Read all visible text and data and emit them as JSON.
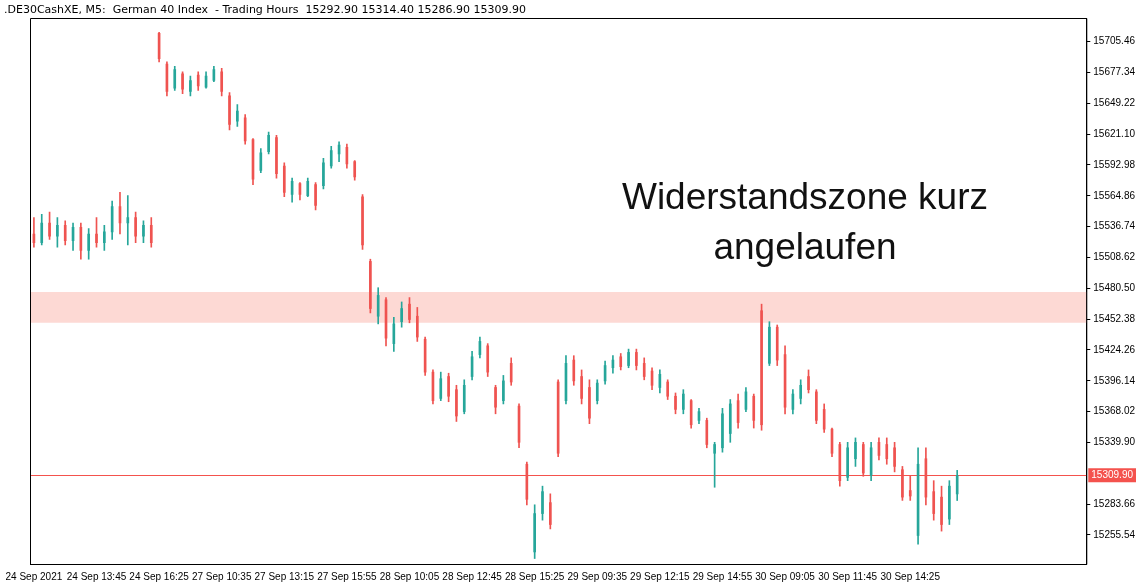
{
  "chart_data": {
    "type": "candlestick",
    "title": ".DE30CashXE, M5:  German 40 Index  - Trading Hours  15292.90 15314.40 15286.90 15309.90",
    "annotations": [
      "Widerstandszone kurz angelaufen"
    ],
    "categories": [
      "24 Sep 2021",
      null,
      null,
      null,
      null,
      null,
      null,
      null,
      "24 Sep 13:45",
      null,
      null,
      null,
      null,
      null,
      null,
      null,
      "24 Sep 16:25",
      null,
      null,
      null,
      null,
      null,
      null,
      null,
      "27 Sep 10:35",
      null,
      null,
      null,
      null,
      null,
      null,
      null,
      "27 Sep 13:15",
      null,
      null,
      null,
      null,
      null,
      null,
      null,
      "27 Sep 15:55",
      null,
      null,
      null,
      null,
      null,
      null,
      null,
      "28 Sep 10:05",
      null,
      null,
      null,
      null,
      null,
      null,
      null,
      "28 Sep 12:45",
      null,
      null,
      null,
      null,
      null,
      null,
      null,
      "28 Sep 15:25",
      null,
      null,
      null,
      null,
      null,
      null,
      null,
      "29 Sep 09:35",
      null,
      null,
      null,
      null,
      null,
      null,
      null,
      "29 Sep 12:15",
      null,
      null,
      null,
      null,
      null,
      null,
      null,
      "29 Sep 14:55",
      null,
      null,
      null,
      null,
      null,
      null,
      null,
      "30 Sep 09:05",
      null,
      null,
      null,
      null,
      null,
      null,
      null,
      "30 Sep 11:45",
      null,
      null,
      null,
      null,
      null,
      null,
      null,
      "30 Sep 14:25",
      null,
      null,
      null,
      null,
      null,
      null,
      null,
      null,
      null,
      null,
      null,
      null,
      null,
      null,
      null,
      null,
      null,
      null,
      null,
      null,
      null,
      null
    ],
    "ohlc": [
      [
        15530,
        15545,
        15518,
        15522
      ],
      [
        15522,
        15548,
        15520,
        15540
      ],
      [
        15540,
        15550,
        15525,
        15528
      ],
      [
        15528,
        15545,
        15518,
        15538
      ],
      [
        15538,
        15542,
        15520,
        15524
      ],
      [
        15524,
        15540,
        15515,
        15536
      ],
      [
        15536,
        15540,
        15507,
        15515
      ],
      [
        15515,
        15535,
        15507,
        15530
      ],
      [
        15530,
        15545,
        15518,
        15522
      ],
      [
        15522,
        15538,
        15515,
        15532
      ],
      [
        15532,
        15560,
        15525,
        15555
      ],
      [
        15555,
        15568,
        15530,
        15540
      ],
      [
        15540,
        15565,
        15520,
        15545
      ],
      [
        15545,
        15550,
        15522,
        15528
      ],
      [
        15528,
        15542,
        15522,
        15538
      ],
      [
        15538,
        15545,
        15518,
        15522
      ],
      [
        15713,
        15714,
        15687,
        15690
      ],
      [
        15685,
        15687,
        15656,
        15660
      ],
      [
        15663,
        15683,
        15661,
        15680
      ],
      [
        15676,
        15678,
        15658,
        15662
      ],
      [
        15660,
        15674,
        15656,
        15670
      ],
      [
        15675,
        15678,
        15661,
        15665
      ],
      [
        15664,
        15678,
        15663,
        15674
      ],
      [
        15670,
        15683,
        15669,
        15680
      ],
      [
        15678,
        15681,
        15656,
        15660
      ],
      [
        15656,
        15659,
        15625,
        15630
      ],
      [
        15633,
        15648,
        15628,
        15642
      ],
      [
        15636,
        15639,
        15612,
        15615
      ],
      [
        15616,
        15617,
        15575,
        15580
      ],
      [
        15588,
        15608,
        15586,
        15604
      ],
      [
        15605,
        15623,
        15603,
        15620
      ],
      [
        15618,
        15620,
        15581,
        15585
      ],
      [
        15592,
        15595,
        15564,
        15568
      ],
      [
        15566,
        15581,
        15559,
        15578
      ],
      [
        15576,
        15577,
        15561,
        15566
      ],
      [
        15565,
        15581,
        15564,
        15578
      ],
      [
        15575,
        15577,
        15552,
        15556
      ],
      [
        15574,
        15599,
        15571,
        15595
      ],
      [
        15592,
        15610,
        15590,
        15606
      ],
      [
        15603,
        15614,
        15596,
        15611
      ],
      [
        15609,
        15612,
        15590,
        15594
      ],
      [
        15596,
        15597,
        15579,
        15582
      ],
      [
        15564,
        15566,
        15516,
        15520
      ],
      [
        15505,
        15507,
        15458,
        15462
      ],
      [
        15455,
        15481,
        15448,
        15474
      ],
      [
        15470,
        15472,
        15428,
        15435
      ],
      [
        15430,
        15454,
        15423,
        15448
      ],
      [
        15450,
        15468,
        15445,
        15462
      ],
      [
        15466,
        15472,
        15449,
        15452
      ],
      [
        15455,
        15463,
        15432,
        15436
      ],
      [
        15434,
        15436,
        15401,
        15404
      ],
      [
        15404,
        15406,
        15375,
        15378
      ],
      [
        15380,
        15404,
        15378,
        15398
      ],
      [
        15400,
        15403,
        15377,
        15382
      ],
      [
        15388,
        15392,
        15359,
        15364
      ],
      [
        15368,
        15397,
        15366,
        15392
      ],
      [
        15400,
        15423,
        15397,
        15418
      ],
      [
        15420,
        15436,
        15417,
        15432
      ],
      [
        15428,
        15430,
        15400,
        15404
      ],
      [
        15390,
        15392,
        15366,
        15372
      ],
      [
        15378,
        15401,
        15375,
        15396
      ],
      [
        15412,
        15417,
        15392,
        15395
      ],
      [
        15373,
        15375,
        15335,
        15340
      ],
      [
        15320,
        15322,
        15283,
        15288
      ],
      [
        15240,
        15283,
        15234,
        15275
      ],
      [
        15275,
        15300,
        15269,
        15295
      ],
      [
        15285,
        15293,
        15261,
        15265
      ],
      [
        15395,
        15397,
        15327,
        15330
      ],
      [
        15378,
        15419,
        15375,
        15412
      ],
      [
        15415,
        15419,
        15392,
        15396
      ],
      [
        15400,
        15406,
        15375,
        15380
      ],
      [
        15390,
        15397,
        15357,
        15362
      ],
      [
        15378,
        15397,
        15375,
        15394
      ],
      [
        15396,
        15414,
        15393,
        15410
      ],
      [
        15408,
        15419,
        15403,
        15415
      ],
      [
        15418,
        15421,
        15406,
        15409
      ],
      [
        15410,
        15425,
        15408,
        15422
      ],
      [
        15422,
        15425,
        15406,
        15410
      ],
      [
        15412,
        15417,
        15397,
        15400
      ],
      [
        15405,
        15408,
        15388,
        15392
      ],
      [
        15390,
        15406,
        15385,
        15402
      ],
      [
        15395,
        15397,
        15379,
        15382
      ],
      [
        15382,
        15385,
        15366,
        15370
      ],
      [
        15370,
        15388,
        15366,
        15384
      ],
      [
        15378,
        15379,
        15353,
        15356
      ],
      [
        15360,
        15371,
        15357,
        15368
      ],
      [
        15360,
        15362,
        15335,
        15338
      ],
      [
        15330,
        15340,
        15299,
        15338
      ],
      [
        15335,
        15371,
        15331,
        15366
      ],
      [
        15348,
        15379,
        15340,
        15375
      ],
      [
        15378,
        15384,
        15353,
        15358
      ],
      [
        15370,
        15390,
        15368,
        15386
      ],
      [
        15382,
        15384,
        15353,
        15360
      ],
      [
        15460,
        15466,
        15351,
        15356
      ],
      [
        15412,
        15450,
        15410,
        15445
      ],
      [
        15445,
        15447,
        15410,
        15415
      ],
      [
        15420,
        15428,
        15366,
        15372
      ],
      [
        15370,
        15388,
        15366,
        15384
      ],
      [
        15380,
        15397,
        15375,
        15392
      ],
      [
        15400,
        15406,
        15385,
        15388
      ],
      [
        15386,
        15388,
        15357,
        15360
      ],
      [
        15370,
        15375,
        15349,
        15352
      ],
      [
        15352,
        15353,
        15327,
        15330
      ],
      [
        15338,
        15340,
        15300,
        15305
      ],
      [
        15308,
        15340,
        15305,
        15335
      ],
      [
        15325,
        15344,
        15318,
        15340
      ],
      [
        15338,
        15340,
        15309,
        15312
      ],
      [
        15310,
        15340,
        15305,
        15335
      ],
      [
        15340,
        15344,
        15324,
        15328
      ],
      [
        15338,
        15344,
        15320,
        15325
      ],
      [
        15335,
        15340,
        15313,
        15318
      ],
      [
        15315,
        15318,
        15287,
        15290
      ],
      [
        15296,
        15309,
        15287,
        15291
      ],
      [
        15255,
        15335,
        15247,
        15320
      ],
      [
        15325,
        15335,
        15283,
        15290
      ],
      [
        15295,
        15305,
        15269,
        15275
      ],
      [
        15290,
        15300,
        15259,
        15265
      ],
      [
        15270,
        15305,
        15265,
        15300
      ],
      [
        15292.9,
        15314.4,
        15286.9,
        15309.9
      ],
      null,
      null,
      null,
      null,
      null,
      null,
      null,
      null,
      null,
      null,
      null,
      null,
      null,
      null,
      null,
      null
    ],
    "colors": [
      "#ef5350",
      "#26a69a",
      "#ef5350",
      "#26a69a",
      "#ef5350",
      "#26a69a",
      "#ef5350",
      "#26a69a",
      "#ef5350",
      "#26a69a",
      "#26a69a",
      "#ef5350",
      "#26a69a",
      "#ef5350",
      "#26a69a",
      "#ef5350",
      "#ef5350",
      "#ef5350",
      "#26a69a",
      "#ef5350",
      "#26a69a",
      "#ef5350",
      "#26a69a",
      "#26a69a",
      "#ef5350",
      "#ef5350",
      "#26a69a",
      "#ef5350",
      "#ef5350",
      "#26a69a",
      "#26a69a",
      "#ef5350",
      "#ef5350",
      "#26a69a",
      "#ef5350",
      "#26a69a",
      "#ef5350",
      "#26a69a",
      "#26a69a",
      "#26a69a",
      "#ef5350",
      "#ef5350",
      "#ef5350",
      "#ef5350",
      "#26a69a",
      "#ef5350",
      "#26a69a",
      "#26a69a",
      "#ef5350",
      "#ef5350",
      "#ef5350",
      "#ef5350",
      "#26a69a",
      "#ef5350",
      "#ef5350",
      "#26a69a",
      "#26a69a",
      "#26a69a",
      "#ef5350",
      "#ef5350",
      "#26a69a",
      "#ef5350",
      "#ef5350",
      "#ef5350",
      "#26a69a",
      "#26a69a",
      "#ef5350",
      "#ef5350",
      "#26a69a",
      "#ef5350",
      "#ef5350",
      "#ef5350",
      "#26a69a",
      "#26a69a",
      "#26a69a",
      "#ef5350",
      "#26a69a",
      "#ef5350",
      "#ef5350",
      "#ef5350",
      "#26a69a",
      "#ef5350",
      "#ef5350",
      "#26a69a",
      "#ef5350",
      "#26a69a",
      "#ef5350",
      "#26a69a",
      "#26a69a",
      "#26a69a",
      "#ef5350",
      "#26a69a",
      "#ef5350",
      "#ef5350",
      "#26a69a",
      "#ef5350",
      "#ef5350",
      "#26a69a",
      "#26a69a",
      "#ef5350",
      "#ef5350",
      "#ef5350",
      "#ef5350",
      "#ef5350",
      "#26a69a",
      "#26a69a",
      "#ef5350",
      "#26a69a",
      "#ef5350",
      "#ef5350",
      "#ef5350",
      "#ef5350",
      "#ef5350",
      "#26a69a",
      "#ef5350",
      "#ef5350",
      "#ef5350",
      "#26a69a",
      "#26a69a",
      null,
      null,
      null,
      null,
      null,
      null,
      null,
      null,
      null,
      null,
      null,
      null,
      null,
      null,
      null,
      null
    ],
    "ylim": [
      15229,
      15727
    ],
    "yticks": [
      15255.54,
      15283.66,
      {
        "value": 15339.9,
        "label": "15339.90"
      },
      15368.02,
      15396.14,
      15424.26,
      15452.38,
      {
        "value": 15480.5,
        "label": "15480.50"
      },
      15508.62,
      15536.74,
      15564.86,
      15592.98,
      {
        "value": 15621.1,
        "label": "15621.10"
      },
      15649.22,
      15677.34,
      15705.46
    ],
    "ref_lines": [
      {
        "axis": "y",
        "value": 15309.9,
        "label": "15309.90",
        "color": "#f4524d"
      }
    ],
    "bands": [
      {
        "axis": "y",
        "from": 15449,
        "to": 15477,
        "color": "#fdd9d4"
      }
    ],
    "grid": false,
    "legend": false
  }
}
